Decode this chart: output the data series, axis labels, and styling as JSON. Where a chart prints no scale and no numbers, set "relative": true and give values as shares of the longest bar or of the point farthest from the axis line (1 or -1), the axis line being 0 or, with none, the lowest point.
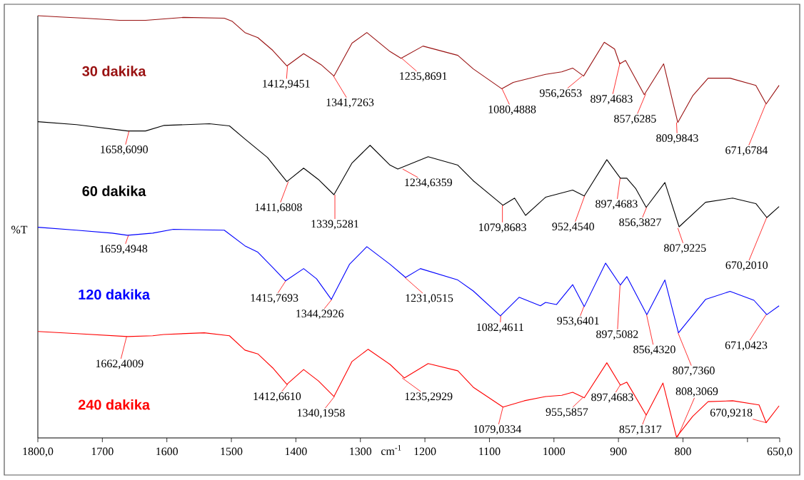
{
  "chart_data": {
    "type": "line",
    "relative": true,
    "xlabel": "cm$^{-1}$",
    "ylabel": "%T",
    "xlim": [
      1800,
      650
    ],
    "xticks": [
      {
        "value": 1800,
        "label": "1800,0"
      },
      1700,
      1600,
      1500,
      1400,
      1300,
      1200,
      1100,
      1000,
      900,
      800,
      {
        "value": 700,
        "label": null
      },
      {
        "value": 650,
        "label": "650,0"
      }
    ],
    "series": [
      {
        "name": "30 dakika",
        "color": "#991111",
        "x": [
          1800,
          1766,
          1728,
          1673,
          1633,
          1574,
          1511,
          1499,
          1479,
          1459,
          1436,
          1414,
          1388,
          1361,
          1341,
          1313,
          1290,
          1254,
          1237,
          1203,
          1149,
          1125,
          1081,
          1063,
          1013,
          988,
          971,
          954,
          922,
          906,
          898,
          889,
          860,
          830,
          808,
          785,
          761,
          727,
          687,
          671,
          651
        ],
        "values": [
          1.0,
          0.997,
          0.994,
          0.989,
          0.989,
          0.996,
          0.994,
          0.987,
          0.96,
          0.948,
          0.918,
          0.881,
          0.91,
          0.884,
          0.857,
          0.935,
          0.96,
          0.915,
          0.899,
          0.928,
          0.906,
          0.874,
          0.827,
          0.842,
          0.861,
          0.867,
          0.876,
          0.857,
          0.937,
          0.921,
          0.886,
          0.894,
          0.813,
          0.886,
          0.747,
          0.81,
          0.852,
          0.852,
          0.835,
          0.791,
          0.835
        ]
      },
      {
        "name": "60 dakika",
        "color": "#000000",
        "x": [
          1800,
          1740,
          1661,
          1633,
          1605,
          1534,
          1503,
          1479,
          1444,
          1414,
          1388,
          1365,
          1341,
          1313,
          1285,
          1254,
          1242,
          1195,
          1149,
          1125,
          1079,
          1061,
          1044,
          1013,
          971,
          953,
          918,
          897,
          887,
          873,
          857,
          828,
          806,
          765,
          723,
          687,
          670,
          651
        ],
        "values": [
          0.749,
          0.742,
          0.727,
          0.727,
          0.74,
          0.744,
          0.739,
          0.708,
          0.664,
          0.607,
          0.639,
          0.612,
          0.576,
          0.651,
          0.693,
          0.646,
          0.637,
          0.666,
          0.646,
          0.609,
          0.551,
          0.568,
          0.527,
          0.57,
          0.587,
          0.573,
          0.659,
          0.615,
          0.615,
          0.59,
          0.546,
          0.605,
          0.5,
          0.558,
          0.568,
          0.555,
          0.522,
          0.548
        ]
      },
      {
        "name": "120 dakika",
        "color": "#0000ff",
        "x": [
          1800,
          1740,
          1685,
          1661,
          1622,
          1590,
          1511,
          1479,
          1459,
          1436,
          1416,
          1388,
          1368,
          1345,
          1317,
          1290,
          1254,
          1230,
          1207,
          1149,
          1125,
          1083,
          1054,
          1021,
          1013,
          996,
          971,
          953,
          920,
          897,
          887,
          856,
          828,
          807,
          765,
          727,
          690,
          670,
          651
        ],
        "values": [
          0.499,
          0.492,
          0.485,
          0.48,
          0.485,
          0.494,
          0.492,
          0.455,
          0.44,
          0.404,
          0.372,
          0.401,
          0.377,
          0.328,
          0.411,
          0.453,
          0.411,
          0.38,
          0.401,
          0.374,
          0.348,
          0.289,
          0.333,
          0.313,
          0.321,
          0.316,
          0.363,
          0.311,
          0.414,
          0.362,
          0.382,
          0.292,
          0.374,
          0.249,
          0.328,
          0.347,
          0.326,
          0.292,
          0.313
        ]
      },
      {
        "name": "240 dakika",
        "color": "#ff0000",
        "x": [
          1800,
          1740,
          1661,
          1622,
          1605,
          1542,
          1503,
          1479,
          1459,
          1436,
          1414,
          1388,
          1365,
          1341,
          1313,
          1288,
          1254,
          1232,
          1195,
          1149,
          1125,
          1079,
          1046,
          1013,
          988,
          971,
          953,
          918,
          897,
          887,
          857,
          831,
          810,
          785,
          761,
          723,
          682,
          671,
          651
        ],
        "values": [
          0.252,
          0.247,
          0.24,
          0.242,
          0.245,
          0.249,
          0.242,
          0.208,
          0.199,
          0.166,
          0.127,
          0.162,
          0.135,
          0.098,
          0.181,
          0.21,
          0.174,
          0.142,
          0.176,
          0.159,
          0.12,
          0.073,
          0.088,
          0.098,
          0.101,
          0.108,
          0.095,
          0.178,
          0.125,
          0.132,
          0.054,
          0.13,
          0.002,
          0.051,
          0.086,
          0.088,
          0.078,
          0.036,
          0.076
        ]
      }
    ],
    "annotations": [
      {
        "text": "1412,9451",
        "x": 1412.9451,
        "y": 0.881
      },
      {
        "text": "1341,7263",
        "x": 1341.7263,
        "y": 0.857
      },
      {
        "text": "1235,8691",
        "x": 1235.8691,
        "y": 0.899
      },
      {
        "text": "1080,4888",
        "x": 1080.4888,
        "y": 0.827
      },
      {
        "text": "956,2653",
        "x": 956.2653,
        "y": 0.857
      },
      {
        "text": "897,4683",
        "x": 897.4683,
        "y": 0.889
      },
      {
        "text": "857,6285",
        "x": 857.6285,
        "y": 0.815
      },
      {
        "text": "809,9843",
        "x": 809.9843,
        "y": 0.747
      },
      {
        "text": "671,6784",
        "x": 671.6784,
        "y": 0.791
      },
      {
        "text": "1658,6090",
        "x": 1658.609,
        "y": 0.727
      },
      {
        "text": "1411,6808",
        "x": 1411.6808,
        "y": 0.607
      },
      {
        "text": "1339,5281",
        "x": 1339.5281,
        "y": 0.576
      },
      {
        "text": "1234,6359",
        "x": 1234.6359,
        "y": 0.637
      },
      {
        "text": "1079,8683",
        "x": 1079.8683,
        "y": 0.551
      },
      {
        "text": "952,4540",
        "x": 952.454,
        "y": 0.573
      },
      {
        "text": "897,4683",
        "x": 897.4683,
        "y": 0.615
      },
      {
        "text": "856,3827",
        "x": 856.3827,
        "y": 0.546
      },
      {
        "text": "807,9225",
        "x": 807.9225,
        "y": 0.497
      },
      {
        "text": "670,2010",
        "x": 670.201,
        "y": 0.522
      },
      {
        "text": "1659,4948",
        "x": 1659.4948,
        "y": 0.48
      },
      {
        "text": "1415,7693",
        "x": 1415.7693,
        "y": 0.372
      },
      {
        "text": "1344,2926",
        "x": 1344.2926,
        "y": 0.328
      },
      {
        "text": "1231,0515",
        "x": 1231.0515,
        "y": 0.38
      },
      {
        "text": "1082,4611",
        "x": 1082.4611,
        "y": 0.289
      },
      {
        "text": "953,6401",
        "x": 953.6401,
        "y": 0.311
      },
      {
        "text": "897,5082",
        "x": 897.5082,
        "y": 0.362
      },
      {
        "text": "856,4320",
        "x": 856.432,
        "y": 0.292
      },
      {
        "text": "807,7360",
        "x": 807.736,
        "y": 0.249
      },
      {
        "text": "671,0423",
        "x": 671.0423,
        "y": 0.292
      },
      {
        "text": "1662,4009",
        "x": 1662.4009,
        "y": 0.24
      },
      {
        "text": "1412,6610",
        "x": 1412.661,
        "y": 0.127
      },
      {
        "text": "1340,1958",
        "x": 1340.1958,
        "y": 0.098
      },
      {
        "text": "1235,2929",
        "x": 1235.2929,
        "y": 0.142
      },
      {
        "text": "1079,0334",
        "x": 1079.0334,
        "y": 0.073
      },
      {
        "text": "955,5857",
        "x": 955.5857,
        "y": 0.095
      },
      {
        "text": "897,4683",
        "x": 897.4683,
        "y": 0.125
      },
      {
        "text": "857,1317",
        "x": 857.1317,
        "y": 0.054
      },
      {
        "text": "808,3069",
        "x": 808.3069,
        "y": 0.002
      },
      {
        "text": "670,9218",
        "x": 670.9218,
        "y": 0.036
      }
    ]
  }
}
